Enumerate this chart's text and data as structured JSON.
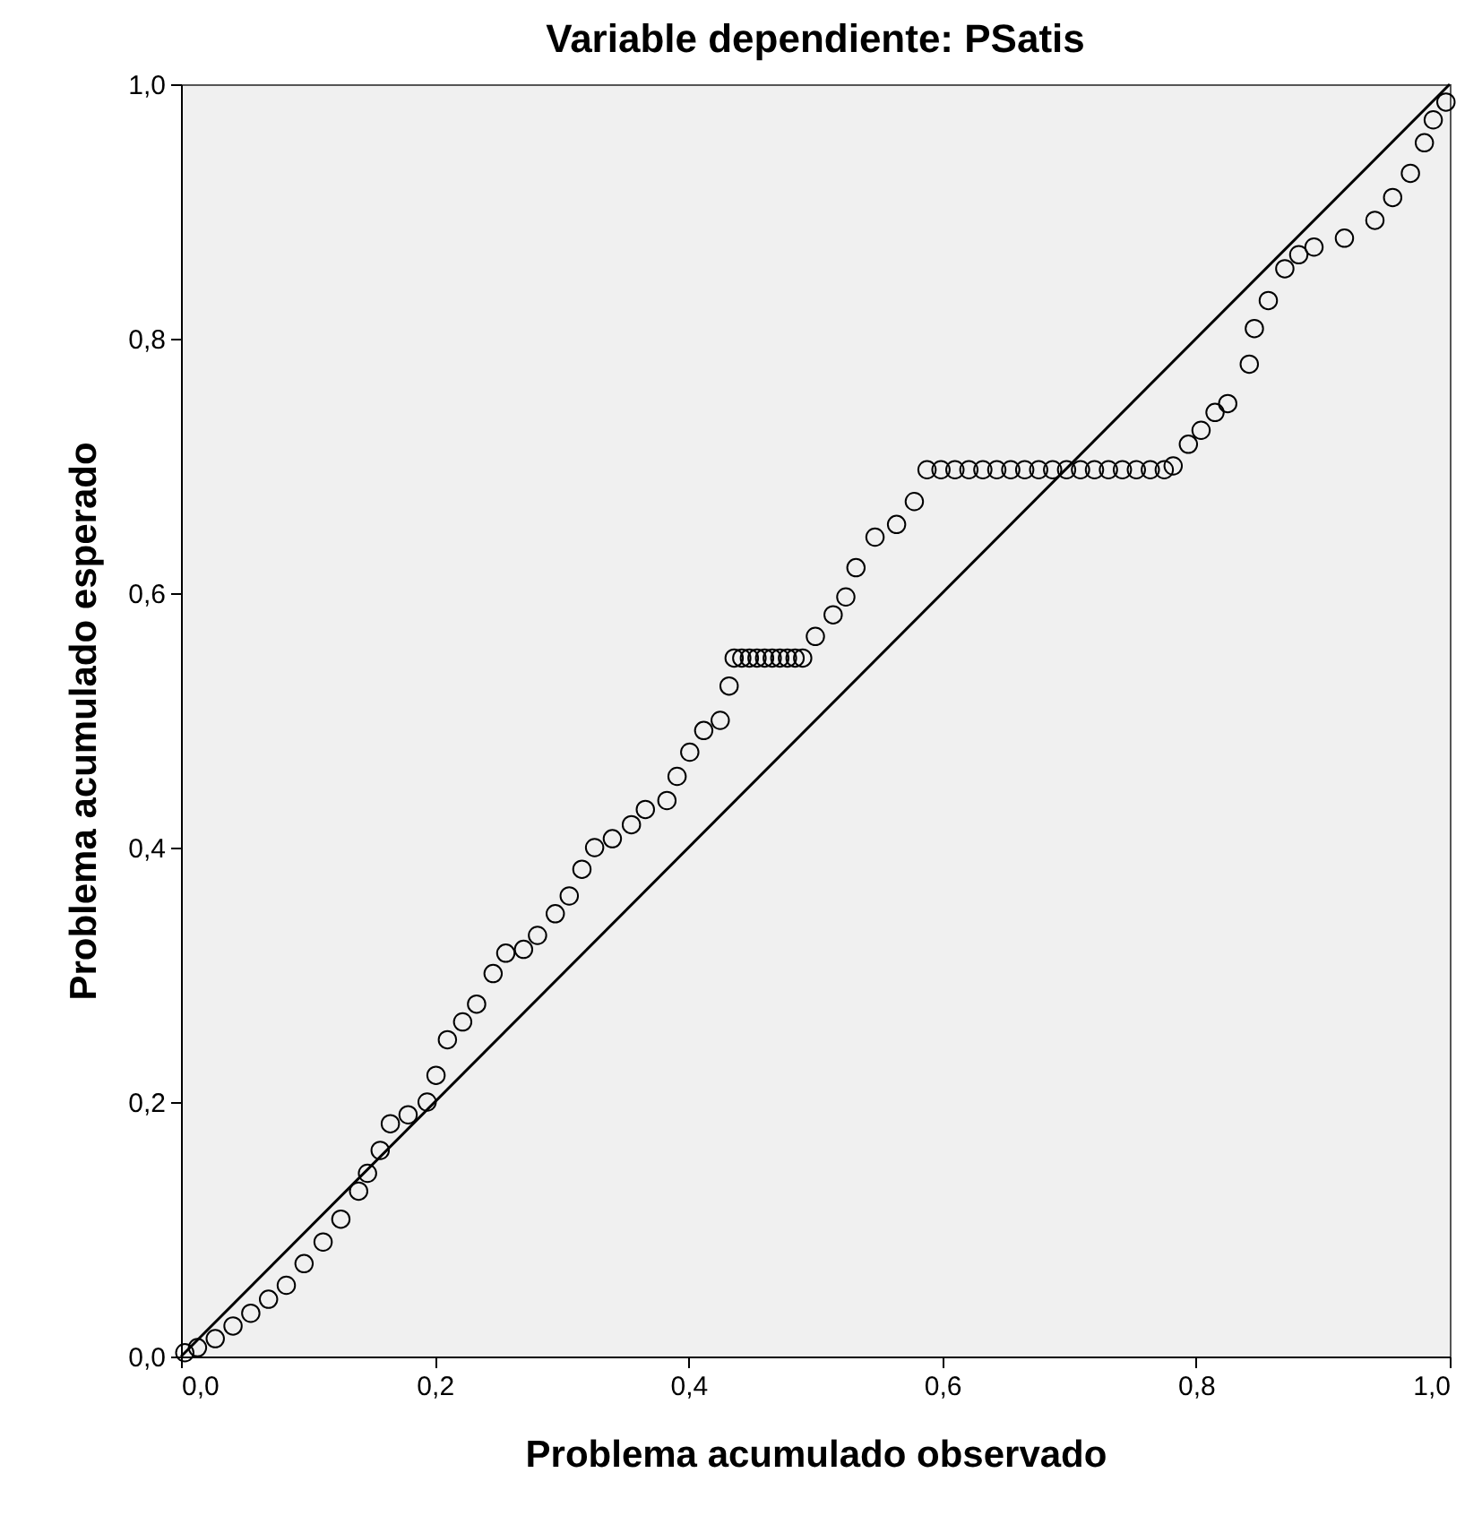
{
  "chart_data": {
    "type": "scatter",
    "title": "Variable dependiente: PSatis",
    "xlabel": "Problema acumulado observado",
    "ylabel": "Problema acumulado esperado",
    "xlim": [
      0,
      1
    ],
    "ylim": [
      0,
      1
    ],
    "xticks": [
      {
        "value": 0,
        "label": "0,0"
      },
      {
        "value": 0.2,
        "label": "0,2"
      },
      {
        "value": 0.4,
        "label": "0,4"
      },
      {
        "value": 0.6,
        "label": "0,6"
      },
      {
        "value": 0.8,
        "label": "0,8"
      },
      {
        "value": 1,
        "label": "1,0"
      }
    ],
    "yticks": [
      {
        "value": 0,
        "label": "0,0"
      },
      {
        "value": 0.2,
        "label": "0,2"
      },
      {
        "value": 0.4,
        "label": "0,4"
      },
      {
        "value": 0.6,
        "label": "0,6"
      },
      {
        "value": 0.8,
        "label": "0,8"
      },
      {
        "value": 1,
        "label": "1,0"
      }
    ],
    "grid": false,
    "series": [
      {
        "marker": "circle",
        "color": "#000000",
        "x": [
          0.003,
          0.013,
          0.027,
          0.041,
          0.055,
          0.069,
          0.083,
          0.097,
          0.112,
          0.126,
          0.14,
          0.147,
          0.157,
          0.165,
          0.179,
          0.194,
          0.201,
          0.21,
          0.222,
          0.233,
          0.246,
          0.256,
          0.27,
          0.281,
          0.295,
          0.306,
          0.316,
          0.326,
          0.34,
          0.355,
          0.366,
          0.383,
          0.391,
          0.401,
          0.412,
          0.425,
          0.432,
          0.436,
          0.442,
          0.448,
          0.454,
          0.46,
          0.466,
          0.472,
          0.478,
          0.484,
          0.49,
          0.5,
          0.514,
          0.524,
          0.532,
          0.547,
          0.564,
          0.578,
          0.588,
          0.599,
          0.61,
          0.621,
          0.632,
          0.643,
          0.654,
          0.665,
          0.676,
          0.687,
          0.698,
          0.709,
          0.72,
          0.731,
          0.742,
          0.753,
          0.764,
          0.775,
          0.782,
          0.794,
          0.804,
          0.815,
          0.825,
          0.842,
          0.846,
          0.857,
          0.87,
          0.881,
          0.893,
          0.917,
          0.941,
          0.955,
          0.969,
          0.98,
          0.987,
          0.997
        ],
        "values": [
          0.003,
          0.007,
          0.014,
          0.024,
          0.034,
          0.045,
          0.056,
          0.073,
          0.09,
          0.108,
          0.13,
          0.144,
          0.162,
          0.183,
          0.19,
          0.2,
          0.221,
          0.249,
          0.263,
          0.277,
          0.301,
          0.317,
          0.32,
          0.331,
          0.348,
          0.362,
          0.383,
          0.4,
          0.407,
          0.418,
          0.43,
          0.437,
          0.456,
          0.475,
          0.492,
          0.5,
          0.527,
          0.549,
          0.549,
          0.549,
          0.549,
          0.549,
          0.549,
          0.549,
          0.549,
          0.549,
          0.549,
          0.566,
          0.583,
          0.597,
          0.62,
          0.644,
          0.654,
          0.672,
          0.697,
          0.697,
          0.697,
          0.697,
          0.697,
          0.697,
          0.697,
          0.697,
          0.697,
          0.697,
          0.697,
          0.697,
          0.697,
          0.697,
          0.697,
          0.697,
          0.697,
          0.697,
          0.7,
          0.717,
          0.728,
          0.742,
          0.749,
          0.78,
          0.808,
          0.83,
          0.855,
          0.866,
          0.872,
          0.879,
          0.893,
          0.911,
          0.93,
          0.954,
          0.972,
          0.986
        ]
      },
      {
        "type": "line",
        "marker": "none",
        "color": "#000000",
        "x": [
          0,
          1
        ],
        "values": [
          0,
          1
        ]
      }
    ]
  }
}
